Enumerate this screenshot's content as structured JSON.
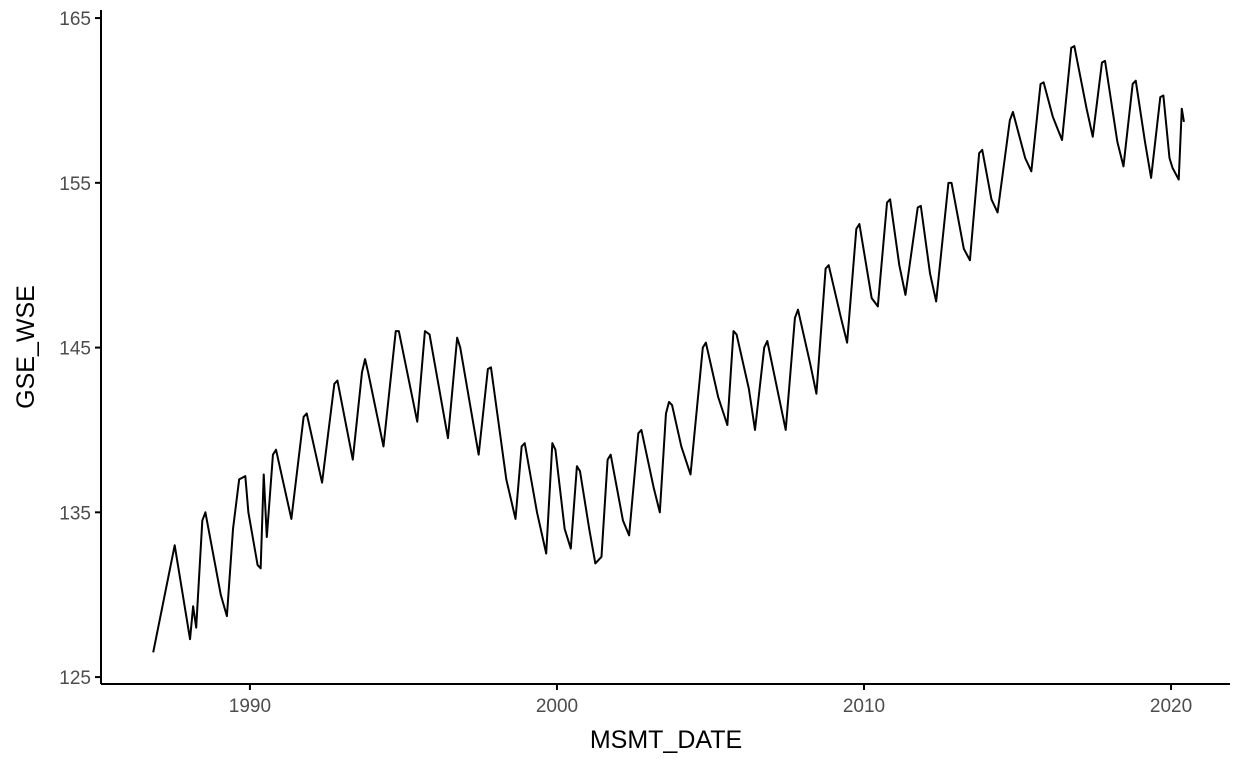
{
  "chart_data": {
    "type": "line",
    "x_label": "MSMT_DATE",
    "y_label": "GSE_WSE",
    "color": "#000000",
    "x": [
      1986.85,
      1987.55,
      1988.05,
      1988.15,
      1988.25,
      1988.45,
      1988.55,
      1988.65,
      1989.05,
      1989.25,
      1989.45,
      1989.65,
      1989.85,
      1989.95,
      1990.25,
      1990.35,
      1990.45,
      1990.55,
      1990.75,
      1990.85,
      1991.35,
      1991.75,
      1991.85,
      1992.35,
      1992.75,
      1992.85,
      1993.35,
      1993.65,
      1993.75,
      1993.85,
      1994.35,
      1994.75,
      1994.85,
      1995.45,
      1995.7,
      1995.85,
      1996.45,
      1996.75,
      1996.85,
      1997.45,
      1997.75,
      1997.85,
      1998.35,
      1998.65,
      1998.85,
      1998.95,
      1999.35,
      1999.65,
      1999.85,
      1999.95,
      2000.25,
      2000.45,
      2000.65,
      2000.75,
      2001.05,
      2001.25,
      2001.45,
      2001.65,
      2001.75,
      2002.15,
      2002.35,
      2002.65,
      2002.75,
      2003.15,
      2003.35,
      2003.55,
      2003.65,
      2003.75,
      2004.05,
      2004.35,
      2004.75,
      2004.85,
      2005.25,
      2005.55,
      2005.75,
      2005.85,
      2006.25,
      2006.45,
      2006.75,
      2006.85,
      2007.25,
      2007.45,
      2007.75,
      2007.85,
      2008.25,
      2008.45,
      2008.75,
      2008.85,
      2009.25,
      2009.45,
      2009.75,
      2009.85,
      2010.25,
      2010.45,
      2010.75,
      2010.85,
      2011.15,
      2011.35,
      2011.75,
      2011.85,
      2012.15,
      2012.35,
      2012.75,
      2012.85,
      2013.25,
      2013.45,
      2013.75,
      2013.85,
      2014.15,
      2014.35,
      2014.75,
      2014.85,
      2015.25,
      2015.45,
      2015.75,
      2015.85,
      2016.15,
      2016.45,
      2016.75,
      2016.85,
      2017.25,
      2017.45,
      2017.75,
      2017.85,
      2018.25,
      2018.45,
      2018.75,
      2018.85,
      2019.15,
      2019.35,
      2019.65,
      2019.75,
      2019.95,
      2020.05,
      2020.25,
      2020.35,
      2020.42
    ],
    "values": [
      126.5,
      133,
      127.3,
      129.3,
      128,
      134.5,
      135,
      134,
      130,
      128.7,
      134,
      137,
      137.2,
      135,
      131.8,
      131.6,
      137.3,
      133.5,
      138.5,
      138.8,
      134.6,
      140.8,
      141,
      136.8,
      142.8,
      143,
      138.2,
      143.5,
      144.3,
      143.5,
      139,
      146,
      146,
      140.5,
      146,
      145.8,
      139.5,
      145.6,
      145,
      138.5,
      143.7,
      143.8,
      137,
      134.6,
      139,
      139.2,
      135,
      132.5,
      139.2,
      138.8,
      134,
      132.8,
      137.8,
      137.5,
      134,
      131.9,
      132.3,
      138.2,
      138.5,
      134.5,
      133.6,
      139.8,
      140,
      136.5,
      135,
      141,
      141.7,
      141.5,
      139,
      137.3,
      145,
      145.3,
      142,
      140.3,
      146,
      145.8,
      142.5,
      140,
      145,
      145.4,
      141.8,
      140,
      146.8,
      147.3,
      144,
      142.2,
      149.8,
      150,
      146.8,
      145.3,
      152.2,
      152.5,
      148,
      147.5,
      153.8,
      154,
      150,
      148.2,
      153.5,
      153.6,
      149.5,
      147.8,
      155,
      155,
      151,
      150.3,
      156.8,
      157,
      154,
      153.2,
      158.8,
      159.3,
      156.5,
      155.7,
      161,
      161.1,
      159,
      157.6,
      163.2,
      163.3,
      159.5,
      157.8,
      162.3,
      162.4,
      157.5,
      156,
      161,
      161.2,
      157.5,
      155.3,
      160.2,
      160.3,
      156.5,
      155.9,
      155.2,
      159.5,
      158.7
    ],
    "xlim": [
      1985.15,
      2021.92
    ],
    "xticks": [
      1990,
      2000,
      2010,
      2020
    ],
    "ylim": [
      124.58,
      165.49
    ],
    "yticks": [
      125,
      135,
      145,
      155,
      165
    ]
  }
}
